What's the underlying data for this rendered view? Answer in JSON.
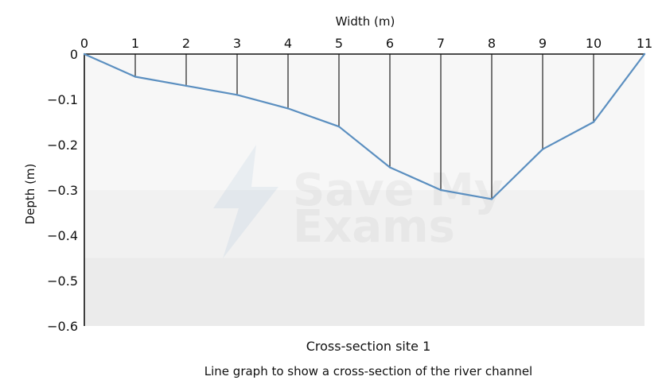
{
  "chart_data": {
    "type": "line",
    "title": "Cross-section site 1",
    "subtitle": "Line graph to show a cross-section of the river channel",
    "xlabel": "Width (m)",
    "ylabel": "Depth (m)",
    "x_ticks": [
      "0",
      "1",
      "2",
      "3",
      "4",
      "5",
      "6",
      "7",
      "8",
      "9",
      "10",
      "11"
    ],
    "y_ticks": [
      "0",
      "−0.1",
      "−0.2",
      "−0.3",
      "−0.4",
      "−0.5",
      "−0.6"
    ],
    "xlim": [
      0,
      11
    ],
    "ylim": [
      -0.6,
      0
    ],
    "x_axis_position": "top",
    "grid": false,
    "series": [
      {
        "x": [
          0,
          1,
          2,
          3,
          4,
          5,
          6,
          7,
          8,
          9,
          10,
          11
        ],
        "y": [
          0,
          -0.05,
          -0.07,
          -0.09,
          -0.12,
          -0.16,
          -0.25,
          -0.3,
          -0.32,
          -0.21,
          -0.15,
          0
        ]
      }
    ],
    "colors": {
      "line": "#5b8fc0",
      "verticals": "#222222",
      "band_light": "#f7f7f7",
      "band_mid": "#f1f1f1",
      "band_dark": "#ebebeb"
    }
  },
  "watermark": {
    "line1": "Save My",
    "line2": "Exams"
  }
}
